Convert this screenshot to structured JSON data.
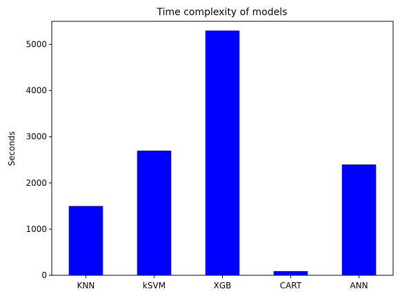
{
  "chart_data": {
    "type": "bar",
    "title": "Time complexity of models",
    "xlabel": "",
    "ylabel": "Seconds",
    "categories": [
      "KNN",
      "kSVM",
      "XGB",
      "CART",
      "ANN"
    ],
    "values": [
      1500,
      2700,
      5300,
      90,
      2400
    ],
    "ylim": [
      0,
      5500
    ],
    "yticks": [
      0,
      1000,
      2000,
      3000,
      4000,
      5000
    ],
    "bar_color": "#0000ff",
    "grid": false,
    "legend": "none"
  }
}
